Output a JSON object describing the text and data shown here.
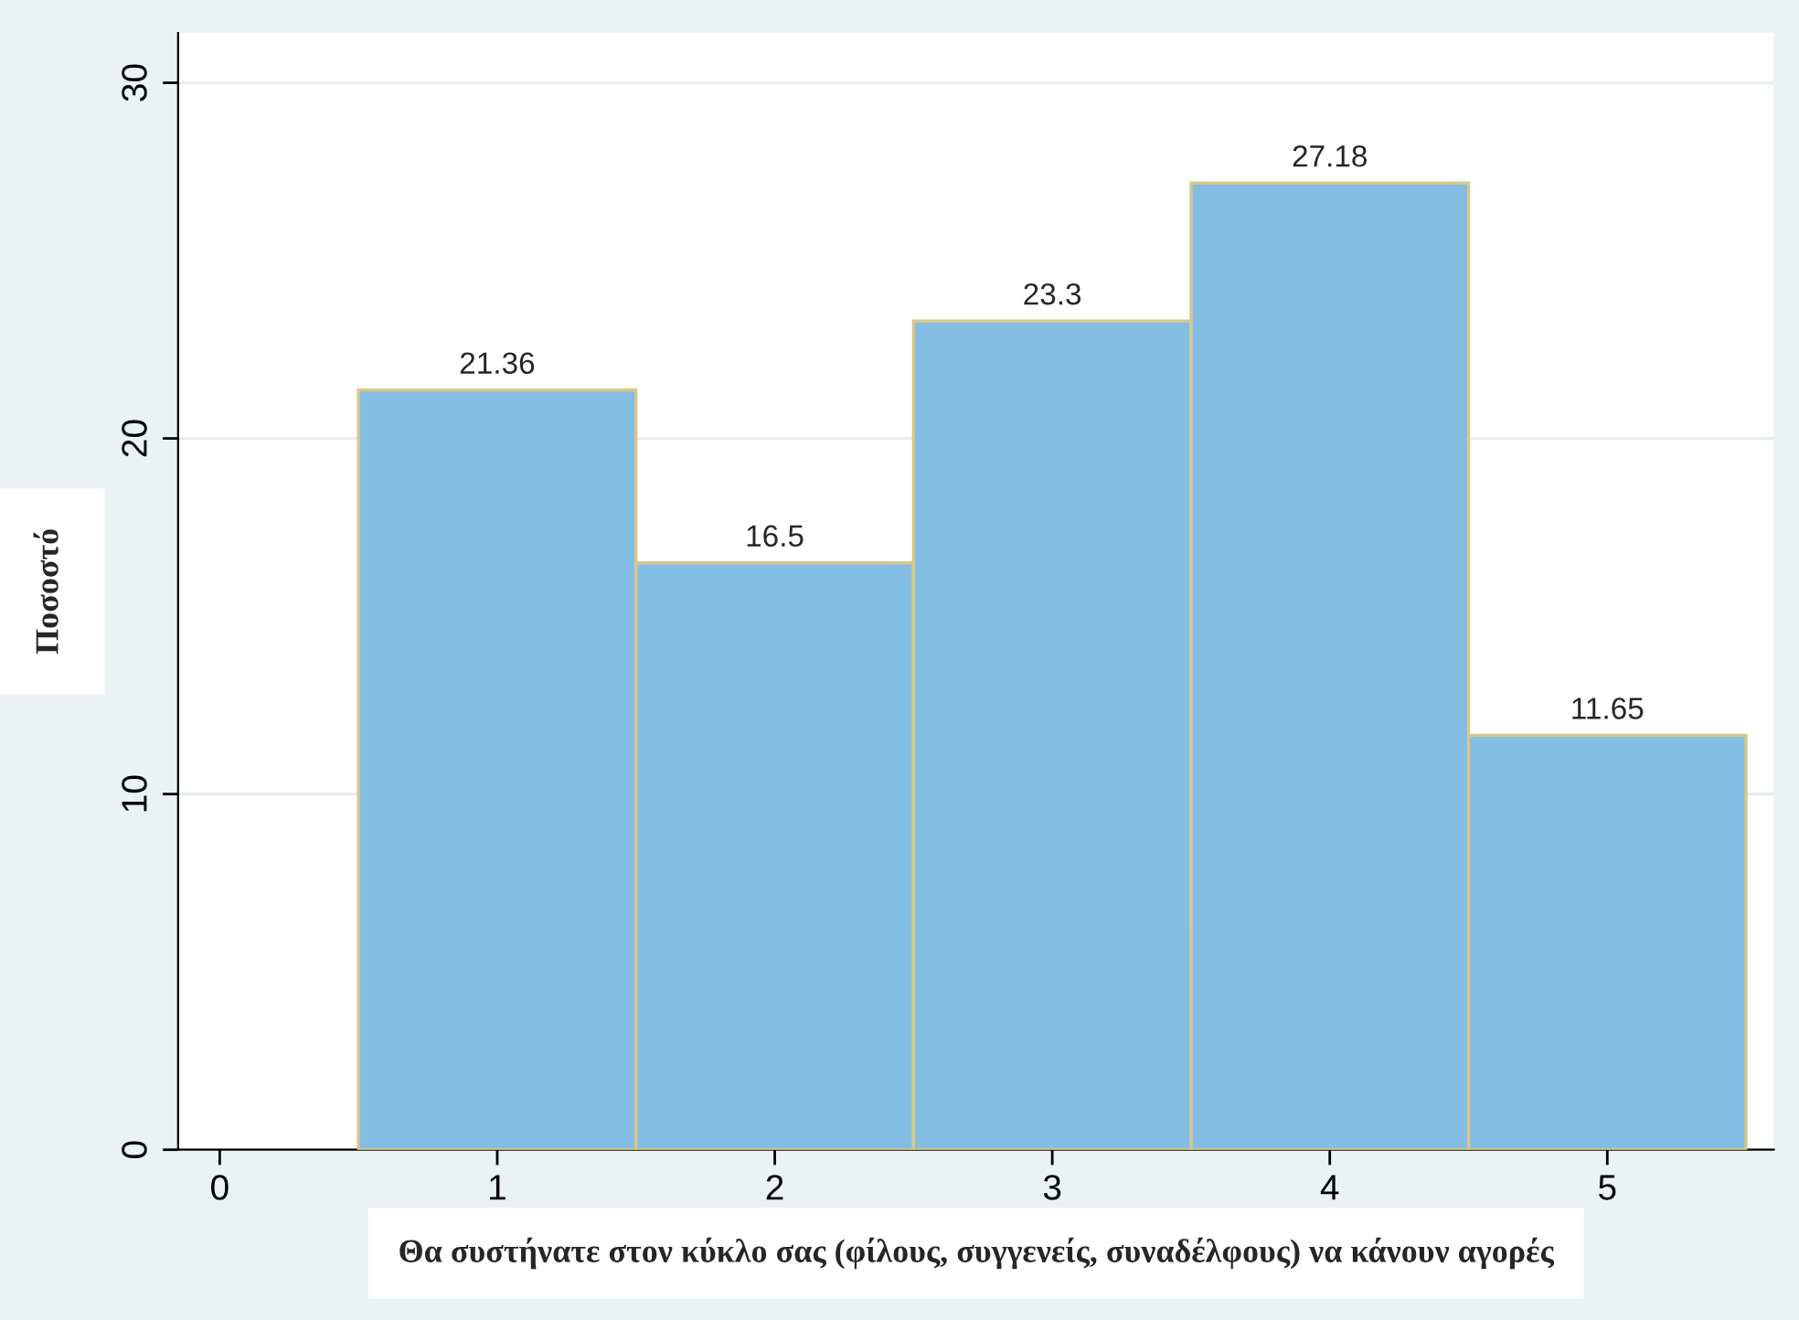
{
  "chart_data": {
    "type": "histogram",
    "xlabel": "Θα συστήνατε στον κύκλο σας (φίλους, συγγενείς, συναδέλφους) να κάνουν αγορές",
    "ylabel": "Ποσοστό",
    "bins": [
      0.5,
      1.5,
      2.5,
      3.5,
      4.5,
      5.5
    ],
    "values": [
      21.36,
      16.5,
      23.3,
      27.18,
      11.65
    ],
    "color": "#84bde4",
    "data_labels": true,
    "xlim": [
      -0.15,
      5.6
    ],
    "xticks": [
      0,
      1,
      2,
      3,
      4,
      5
    ],
    "ylim": [
      0,
      31.4
    ],
    "yticks": [
      0,
      10,
      20,
      30
    ],
    "grid": "y"
  }
}
